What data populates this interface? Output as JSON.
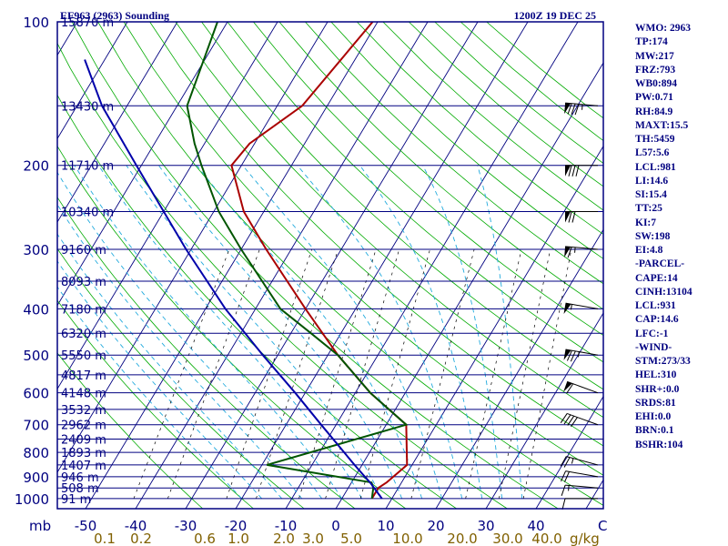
{
  "header": {
    "station": "EF963 (2963) Sounding",
    "time": "1200Z 19 DEC 25"
  },
  "indices": [
    "WMO: 2963",
    "TP:174",
    "MW:217",
    "FRZ:793",
    "WB0:894",
    "PW:0.71",
    "RH:84.9",
    "MAXT:15.5",
    "TH:5459",
    "L57:5.6",
    "LCL:981",
    "LI:14.6",
    "SI:15.4",
    "TT:25",
    "KI:7",
    "SW:198",
    "EI:4.8",
    "-PARCEL-",
    "CAPE:14",
    "CINH:13104",
    "LCL:931",
    "CAP:14.6",
    "LFC:-1",
    "-WIND-",
    "STM:273/33",
    "HEL:310",
    "SHR+:0.0",
    "SRDS:81",
    "EHI:0.0",
    "BRN:0.1",
    "BSHR:104"
  ],
  "colors": {
    "frame": "#000080",
    "isobar": "#000080",
    "isotherm": "#000080",
    "dry_adiabat": "#00aa00",
    "moist_adiabat": "#22aadd",
    "mixing_ratio": "#000000",
    "temperature": "#aa0000",
    "dewpoint": "#005500",
    "parcel": "#0000aa",
    "mixing_label": "#806000",
    "wind_barb": "#000000"
  },
  "chart_data": {
    "type": "skew-t",
    "title": "EF963 (2963) Sounding",
    "pressure_axis": {
      "label": "mb",
      "ticks": [
        100,
        200,
        300,
        400,
        500,
        600,
        700,
        800,
        900,
        1000
      ],
      "range": [
        1000,
        100
      ]
    },
    "temperature_axis": {
      "ticks": [
        -50,
        -40,
        -30,
        -20,
        -10,
        0,
        10,
        20,
        30,
        40
      ],
      "unit_label": "C"
    },
    "mixing_ratio_labels": [
      "0.1",
      "0.2",
      "0.6",
      "1.0",
      "2.0",
      "3.0",
      "5.0",
      "10.0",
      "20.0",
      "30.0",
      "40.0"
    ],
    "mixing_ratio_unit": "g/kg",
    "height_labels": [
      {
        "p": 100,
        "text": "15870 m"
      },
      {
        "p": 150,
        "text": "13430 m"
      },
      {
        "p": 200,
        "text": "11710 m"
      },
      {
        "p": 250,
        "text": "10340 m"
      },
      {
        "p": 300,
        "text": "9160 m"
      },
      {
        "p": 350,
        "text": "8093 m"
      },
      {
        "p": 400,
        "text": "7180 m"
      },
      {
        "p": 450,
        "text": "6320 m"
      },
      {
        "p": 500,
        "text": "5550 m"
      },
      {
        "p": 550,
        "text": "4817 m"
      },
      {
        "p": 600,
        "text": "4148 m"
      },
      {
        "p": 650,
        "text": "3532 m"
      },
      {
        "p": 700,
        "text": "2962 m"
      },
      {
        "p": 750,
        "text": "2409 m"
      },
      {
        "p": 800,
        "text": "1893 m"
      },
      {
        "p": 850,
        "text": "1407 m"
      },
      {
        "p": 900,
        "text": "946 m"
      },
      {
        "p": 950,
        "text": "508 m"
      },
      {
        "p": 1000,
        "text": "91 m"
      }
    ],
    "series": [
      {
        "name": "Temperature",
        "points": [
          [
            1000,
            6
          ],
          [
            950,
            6
          ],
          [
            925,
            7
          ],
          [
            850,
            9
          ],
          [
            700,
            4
          ],
          [
            600,
            -7
          ],
          [
            500,
            -18
          ],
          [
            400,
            -30
          ],
          [
            300,
            -45
          ],
          [
            250,
            -54
          ],
          [
            200,
            -62
          ],
          [
            180,
            -61
          ],
          [
            150,
            -55
          ],
          [
            100,
            -51
          ]
        ]
      },
      {
        "name": "Dewpoint",
        "points": [
          [
            1000,
            6
          ],
          [
            950,
            5
          ],
          [
            925,
            4
          ],
          [
            850,
            -19
          ],
          [
            700,
            4
          ],
          [
            600,
            -7
          ],
          [
            500,
            -18
          ],
          [
            450,
            -26
          ],
          [
            400,
            -35
          ],
          [
            300,
            -50
          ],
          [
            250,
            -59
          ],
          [
            200,
            -68
          ],
          [
            180,
            -72
          ],
          [
            150,
            -78
          ],
          [
            100,
            -82
          ]
        ]
      },
      {
        "name": "Parcel",
        "points": [
          [
            1000,
            8
          ],
          [
            925,
            3.7
          ],
          [
            900,
            2
          ],
          [
            850,
            -1.5
          ],
          [
            700,
            -13
          ],
          [
            600,
            -22
          ],
          [
            500,
            -33
          ],
          [
            400,
            -46
          ],
          [
            300,
            -61
          ],
          [
            250,
            -70
          ],
          [
            200,
            -81
          ],
          [
            150,
            -95
          ],
          [
            120,
            -104
          ]
        ]
      }
    ],
    "wind_barbs": [
      {
        "p": 1000,
        "dir": 270,
        "kt": 10
      },
      {
        "p": 950,
        "dir": 275,
        "kt": 15
      },
      {
        "p": 900,
        "dir": 280,
        "kt": 20
      },
      {
        "p": 850,
        "dir": 285,
        "kt": 25
      },
      {
        "p": 700,
        "dir": 290,
        "kt": 40
      },
      {
        "p": 600,
        "dir": 290,
        "kt": 60
      },
      {
        "p": 500,
        "dir": 280,
        "kt": 75
      },
      {
        "p": 400,
        "dir": 280,
        "kt": 55
      },
      {
        "p": 300,
        "dir": 275,
        "kt": 65
      },
      {
        "p": 250,
        "dir": 270,
        "kt": 70
      },
      {
        "p": 200,
        "dir": 270,
        "kt": 80
      },
      {
        "p": 150,
        "dir": 275,
        "kt": 85
      }
    ]
  }
}
